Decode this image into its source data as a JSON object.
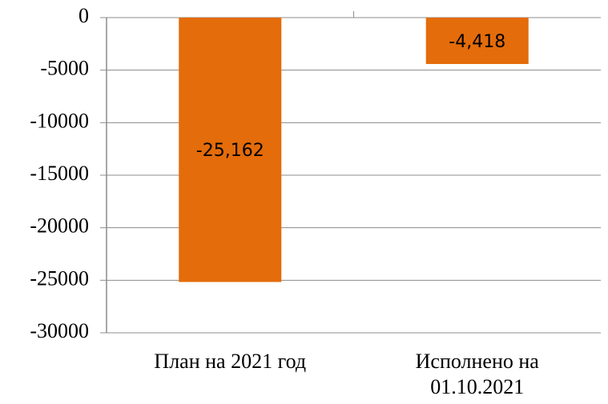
{
  "chart_data": {
    "type": "bar",
    "categories": [
      "План на 2021 год",
      "Исполнено на 01.10.2021"
    ],
    "values": [
      -25162,
      -4418
    ],
    "value_labels": [
      "-25,162",
      "-4,418"
    ],
    "color": "#e46c0a",
    "ylim": [
      -30000,
      0
    ],
    "yticks": [
      0,
      -5000,
      -10000,
      -15000,
      -20000,
      -25000,
      -30000
    ],
    "grid": true
  }
}
